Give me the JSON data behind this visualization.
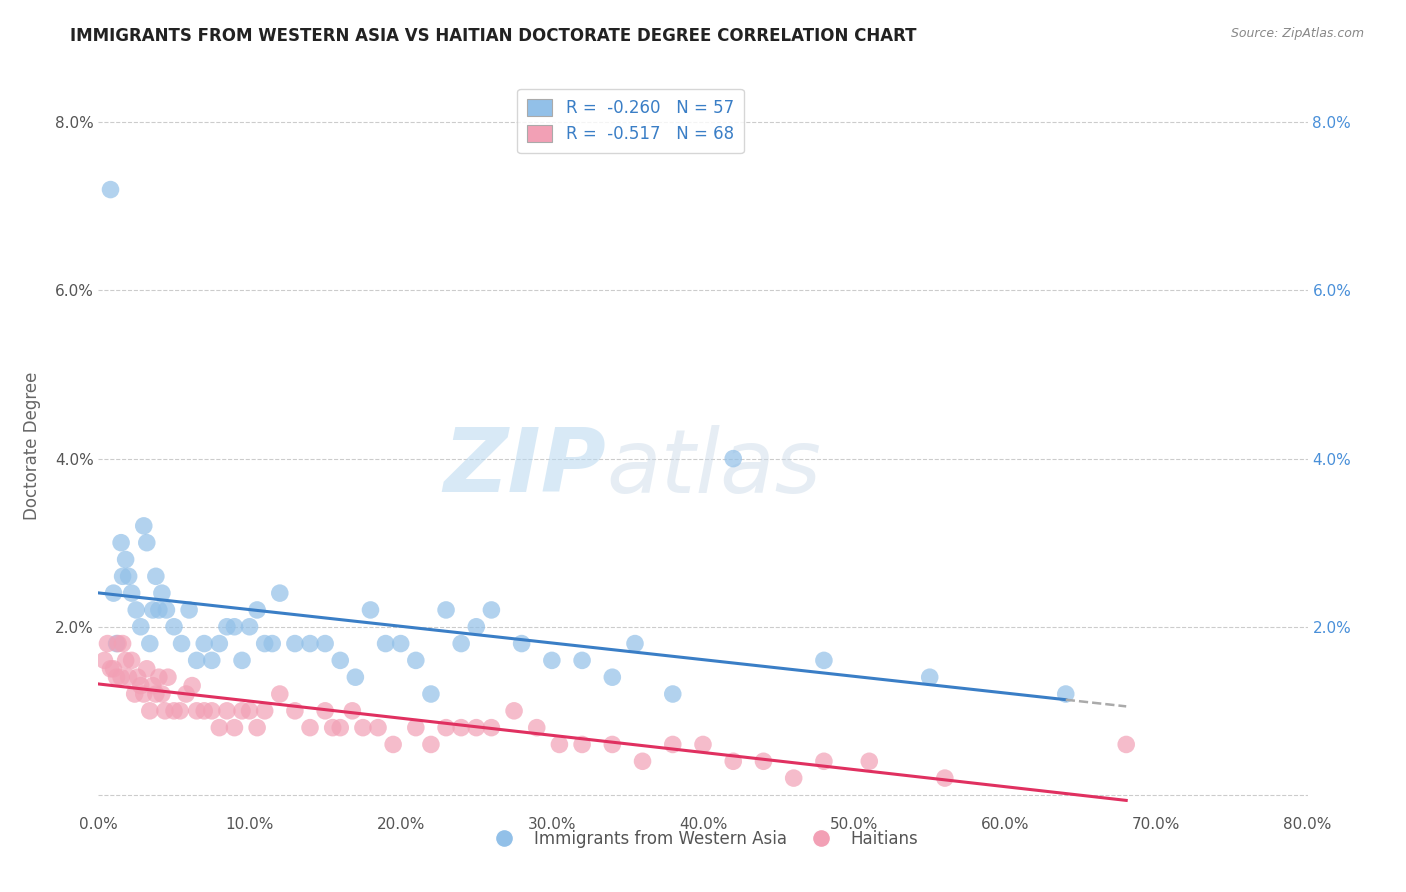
{
  "title": "IMMIGRANTS FROM WESTERN ASIA VS HAITIAN DOCTORATE DEGREE CORRELATION CHART",
  "source_text": "Source: ZipAtlas.com",
  "ylabel": "Doctorate Degree",
  "watermark_zip": "ZIP",
  "watermark_atlas": "atlas",
  "xlim": [
    0.0,
    0.8
  ],
  "ylim": [
    -0.002,
    0.085
  ],
  "xticks": [
    0.0,
    0.1,
    0.2,
    0.3,
    0.4,
    0.5,
    0.6,
    0.7,
    0.8
  ],
  "xtick_labels": [
    "0.0%",
    "10.0%",
    "20.0%",
    "30.0%",
    "40.0%",
    "50.0%",
    "60.0%",
    "70.0%",
    "80.0%"
  ],
  "yticks": [
    0.0,
    0.02,
    0.04,
    0.06,
    0.08
  ],
  "ytick_labels_left": [
    "",
    "2.0%",
    "4.0%",
    "6.0%",
    "8.0%"
  ],
  "ytick_labels_right": [
    "",
    "2.0%",
    "4.0%",
    "6.0%",
    "8.0%"
  ],
  "series1_label": "Immigrants from Western Asia",
  "series2_label": "Haitians",
  "R1": -0.26,
  "N1": 57,
  "R2": -0.517,
  "N2": 68,
  "color_blue": "#92C0E8",
  "color_pink": "#F2A0B5",
  "color_blue_line": "#3A7EC6",
  "color_pink_line": "#E03060",
  "color_dashed": "#AAAAAA",
  "title_color": "#222222",
  "source_color": "#888888",
  "background_color": "#ffffff",
  "grid_color": "#cccccc",
  "blue_x": [
    0.008,
    0.01,
    0.012,
    0.015,
    0.016,
    0.018,
    0.02,
    0.022,
    0.025,
    0.028,
    0.03,
    0.032,
    0.034,
    0.036,
    0.038,
    0.04,
    0.042,
    0.045,
    0.05,
    0.055,
    0.06,
    0.065,
    0.07,
    0.075,
    0.08,
    0.085,
    0.09,
    0.095,
    0.1,
    0.105,
    0.11,
    0.115,
    0.12,
    0.13,
    0.14,
    0.15,
    0.16,
    0.17,
    0.18,
    0.19,
    0.2,
    0.21,
    0.22,
    0.23,
    0.24,
    0.25,
    0.26,
    0.28,
    0.3,
    0.32,
    0.34,
    0.355,
    0.38,
    0.42,
    0.48,
    0.55,
    0.64
  ],
  "blue_y": [
    0.072,
    0.024,
    0.018,
    0.03,
    0.026,
    0.028,
    0.026,
    0.024,
    0.022,
    0.02,
    0.032,
    0.03,
    0.018,
    0.022,
    0.026,
    0.022,
    0.024,
    0.022,
    0.02,
    0.018,
    0.022,
    0.016,
    0.018,
    0.016,
    0.018,
    0.02,
    0.02,
    0.016,
    0.02,
    0.022,
    0.018,
    0.018,
    0.024,
    0.018,
    0.018,
    0.018,
    0.016,
    0.014,
    0.022,
    0.018,
    0.018,
    0.016,
    0.012,
    0.022,
    0.018,
    0.02,
    0.022,
    0.018,
    0.016,
    0.016,
    0.014,
    0.018,
    0.012,
    0.04,
    0.016,
    0.014,
    0.012
  ],
  "pink_x": [
    0.004,
    0.006,
    0.008,
    0.01,
    0.012,
    0.013,
    0.015,
    0.016,
    0.018,
    0.02,
    0.022,
    0.024,
    0.026,
    0.028,
    0.03,
    0.032,
    0.034,
    0.036,
    0.038,
    0.04,
    0.042,
    0.044,
    0.046,
    0.05,
    0.054,
    0.058,
    0.062,
    0.065,
    0.07,
    0.075,
    0.08,
    0.085,
    0.09,
    0.095,
    0.1,
    0.105,
    0.11,
    0.12,
    0.13,
    0.14,
    0.15,
    0.155,
    0.16,
    0.168,
    0.175,
    0.185,
    0.195,
    0.21,
    0.22,
    0.23,
    0.24,
    0.25,
    0.26,
    0.275,
    0.29,
    0.305,
    0.32,
    0.34,
    0.36,
    0.38,
    0.4,
    0.42,
    0.44,
    0.46,
    0.48,
    0.51,
    0.56,
    0.68
  ],
  "pink_y": [
    0.016,
    0.018,
    0.015,
    0.015,
    0.014,
    0.018,
    0.014,
    0.018,
    0.016,
    0.014,
    0.016,
    0.012,
    0.014,
    0.013,
    0.012,
    0.015,
    0.01,
    0.013,
    0.012,
    0.014,
    0.012,
    0.01,
    0.014,
    0.01,
    0.01,
    0.012,
    0.013,
    0.01,
    0.01,
    0.01,
    0.008,
    0.01,
    0.008,
    0.01,
    0.01,
    0.008,
    0.01,
    0.012,
    0.01,
    0.008,
    0.01,
    0.008,
    0.008,
    0.01,
    0.008,
    0.008,
    0.006,
    0.008,
    0.006,
    0.008,
    0.008,
    0.008,
    0.008,
    0.01,
    0.008,
    0.006,
    0.006,
    0.006,
    0.004,
    0.006,
    0.006,
    0.004,
    0.004,
    0.002,
    0.004,
    0.004,
    0.002,
    0.006
  ]
}
